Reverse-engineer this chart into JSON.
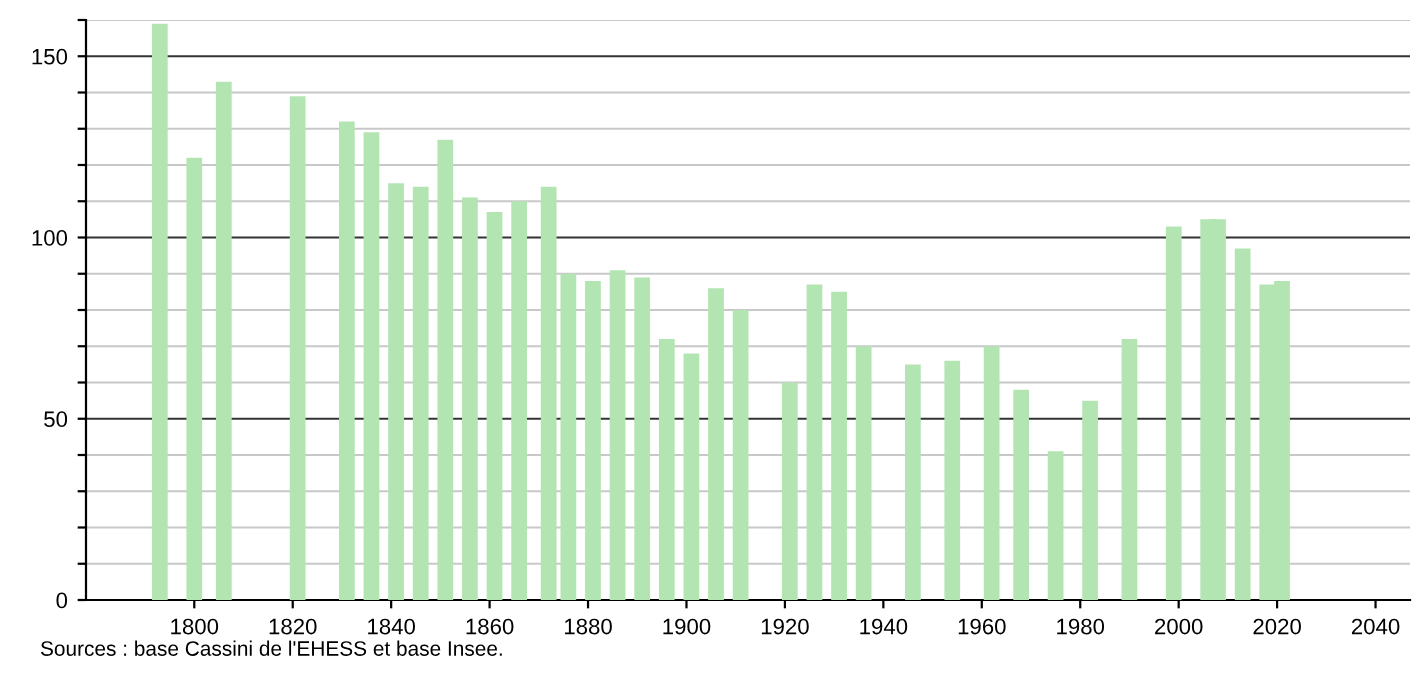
{
  "chart_data": {
    "type": "bar",
    "x": [
      1793,
      1800,
      1806,
      1821,
      1831,
      1836,
      1841,
      1846,
      1851,
      1856,
      1861,
      1866,
      1872,
      1876,
      1881,
      1886,
      1891,
      1896,
      1901,
      1906,
      1911,
      1921,
      1926,
      1931,
      1936,
      1946,
      1954,
      1962,
      1968,
      1975,
      1982,
      1990,
      1999,
      2006,
      2008,
      2013,
      2018,
      2021
    ],
    "values": [
      159,
      122,
      143,
      139,
      132,
      129,
      115,
      114,
      127,
      111,
      107,
      110,
      114,
      90,
      88,
      91,
      89,
      72,
      68,
      86,
      80,
      60,
      87,
      85,
      70,
      65,
      66,
      70,
      58,
      41,
      55,
      72,
      103,
      105,
      105,
      97,
      87,
      88
    ],
    "color": "#b3e5b3",
    "xlim": [
      1778,
      2047
    ],
    "xticks": [
      1800,
      1820,
      1840,
      1860,
      1880,
      1900,
      1920,
      1940,
      1960,
      1980,
      2000,
      2020,
      2040
    ],
    "ylim": [
      0,
      160
    ],
    "yticks": [
      0,
      {
        "value": 10,
        "label": null
      },
      {
        "value": 20,
        "label": null
      },
      {
        "value": 30,
        "label": null
      },
      {
        "value": 40,
        "label": null
      },
      50,
      {
        "value": 60,
        "label": null
      },
      {
        "value": 70,
        "label": null
      },
      {
        "value": 80,
        "label": null
      },
      {
        "value": 90,
        "label": null
      },
      100,
      {
        "value": 110,
        "label": null
      },
      {
        "value": 120,
        "label": null
      },
      {
        "value": 130,
        "label": null
      },
      {
        "value": 140,
        "label": null
      },
      150,
      {
        "value": 160,
        "label": null
      }
    ],
    "grid": "y",
    "annotations": [
      "Sources : base Cassini de l'EHESS et base Insee."
    ]
  }
}
